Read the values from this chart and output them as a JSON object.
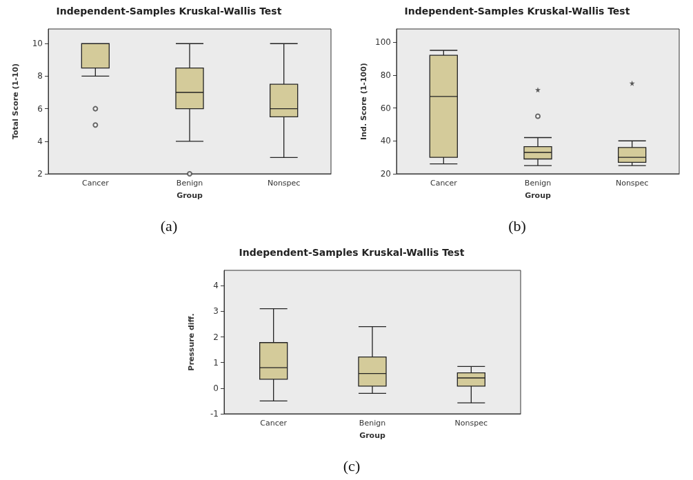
{
  "chart_data": [
    {
      "type": "box",
      "title": "Independent-Samples Kruskal-Wallis Test",
      "xlabel": "Group",
      "ylabel": "Total Score (1-10)",
      "categories": [
        "Cancer",
        "Benign",
        "Nonspec"
      ],
      "color": "#d4cb9a",
      "ylim": [
        2,
        10.9
      ],
      "yticks": [
        2,
        4,
        6,
        8,
        10
      ],
      "annotations": [
        "(a)"
      ],
      "boxes": [
        {
          "low": 8,
          "q1": 8.5,
          "median": 10,
          "q3": 10,
          "high": 10,
          "outliers": [
            6,
            5
          ]
        },
        {
          "low": 4,
          "q1": 6,
          "median": 7,
          "q3": 8.5,
          "high": 10,
          "outliers": [
            2
          ]
        },
        {
          "low": 3,
          "q1": 5.5,
          "median": 6,
          "q3": 7.5,
          "high": 10
        }
      ]
    },
    {
      "type": "box",
      "title": "Independent-Samples Kruskal-Wallis Test",
      "xlabel": "Group",
      "ylabel": "Ind. Score (1-100)",
      "categories": [
        "Cancer",
        "Benign",
        "Nonspec"
      ],
      "color": "#d4cb9a",
      "ylim": [
        20,
        108
      ],
      "yticks": [
        20,
        40,
        60,
        80,
        100
      ],
      "annotations": [
        "(b)"
      ],
      "boxes": [
        {
          "low": 26,
          "q1": 30,
          "median": 67,
          "q3": 92,
          "high": 95
        },
        {
          "low": 25,
          "q1": 29,
          "median": 33,
          "q3": 36.5,
          "high": 42,
          "outliers": [
            55
          ]
        },
        {
          "low": 25,
          "q1": 27,
          "median": 30,
          "q3": 36,
          "high": 40
        }
      ],
      "series": [
        {
          "type": "scatter",
          "marker": "star",
          "color": "#333333",
          "x": [
            "Benign",
            "Nonspec"
          ],
          "values": [
            71,
            75
          ]
        }
      ]
    },
    {
      "type": "box",
      "title": "Independent-Samples Kruskal-Wallis Test",
      "xlabel": "Group",
      "ylabel": "Pressure diff.",
      "categories": [
        "Cancer",
        "Benign",
        "Nonspec"
      ],
      "color": "#d4cb9a",
      "ylim": [
        -1,
        4.6
      ],
      "yticks": [
        -1,
        0,
        1,
        2,
        3,
        4
      ],
      "annotations": [
        "(c)"
      ],
      "boxes": [
        {
          "low": -0.5,
          "q1": 0.35,
          "median": 0.8,
          "q3": 1.78,
          "high": 3.1
        },
        {
          "low": -0.2,
          "q1": 0.08,
          "median": 0.57,
          "q3": 1.22,
          "high": 2.4
        },
        {
          "low": -0.57,
          "q1": 0.08,
          "median": 0.4,
          "q3": 0.6,
          "high": 0.85
        }
      ]
    }
  ]
}
